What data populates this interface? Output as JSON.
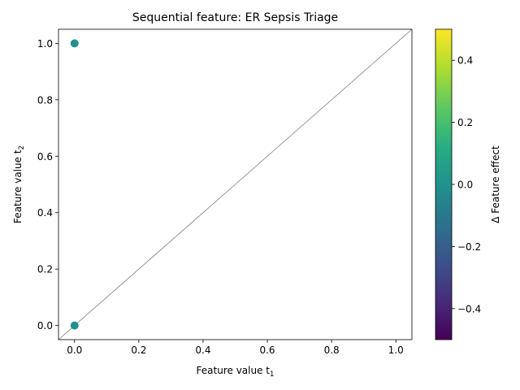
{
  "chart_data": {
    "type": "scatter",
    "title": "Sequential feature: ER Sepsis Triage",
    "xlabel": "Feature value t",
    "xlabel_sub": "1",
    "ylabel": "Feature value t",
    "ylabel_sub": "2",
    "xlim": [
      -0.05,
      1.05
    ],
    "ylim": [
      -0.05,
      1.05
    ],
    "xticks": [
      0.0,
      0.2,
      0.4,
      0.6,
      0.8,
      1.0
    ],
    "xtick_labels": [
      "0.0",
      "0.2",
      "0.4",
      "0.6",
      "0.8",
      "1.0"
    ],
    "yticks": [
      0.0,
      0.2,
      0.4,
      0.6,
      0.8,
      1.0
    ],
    "ytick_labels": [
      "0.0",
      "0.2",
      "0.4",
      "0.6",
      "0.8",
      "1.0"
    ],
    "grid": false,
    "diagonal_reference_line": true,
    "points": [
      {
        "x": 0.0,
        "y": 1.0,
        "delta": 0.0
      },
      {
        "x": 0.0,
        "y": 0.0,
        "delta": 0.0
      }
    ],
    "colorbar": {
      "label": "Δ Feature effect",
      "colormap": "viridis",
      "range": [
        -0.5,
        0.5
      ],
      "ticks": [
        -0.4,
        -0.2,
        0.0,
        0.2,
        0.4
      ],
      "tick_labels": [
        "−0.4",
        "−0.2",
        "0.0",
        "0.2",
        "0.4"
      ]
    }
  }
}
